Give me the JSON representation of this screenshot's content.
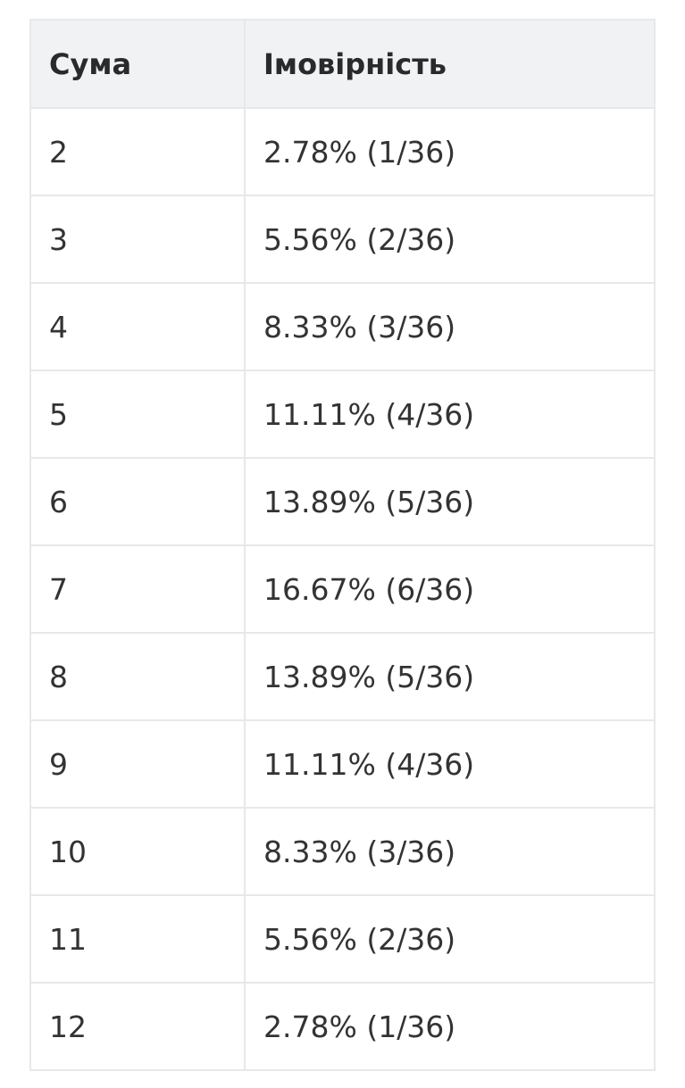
{
  "table": {
    "headers": [
      "Сума",
      "Імовірність"
    ],
    "rows": [
      [
        "2",
        "2.78% (1/36)"
      ],
      [
        "3",
        "5.56% (2/36)"
      ],
      [
        "4",
        "8.33% (3/36)"
      ],
      [
        "5",
        "11.11% (4/36)"
      ],
      [
        "6",
        "13.89% (5/36)"
      ],
      [
        "7",
        "16.67% (6/36)"
      ],
      [
        "8",
        "13.89% (5/36)"
      ],
      [
        "9",
        "11.11% (4/36)"
      ],
      [
        "10",
        "8.33% (3/36)"
      ],
      [
        "11",
        "5.56% (2/36)"
      ],
      [
        "12",
        "2.78% (1/36)"
      ]
    ]
  },
  "colors": {
    "header_bg": "#f1f2f4",
    "border": "#e6e8ea",
    "text": "#333333"
  }
}
